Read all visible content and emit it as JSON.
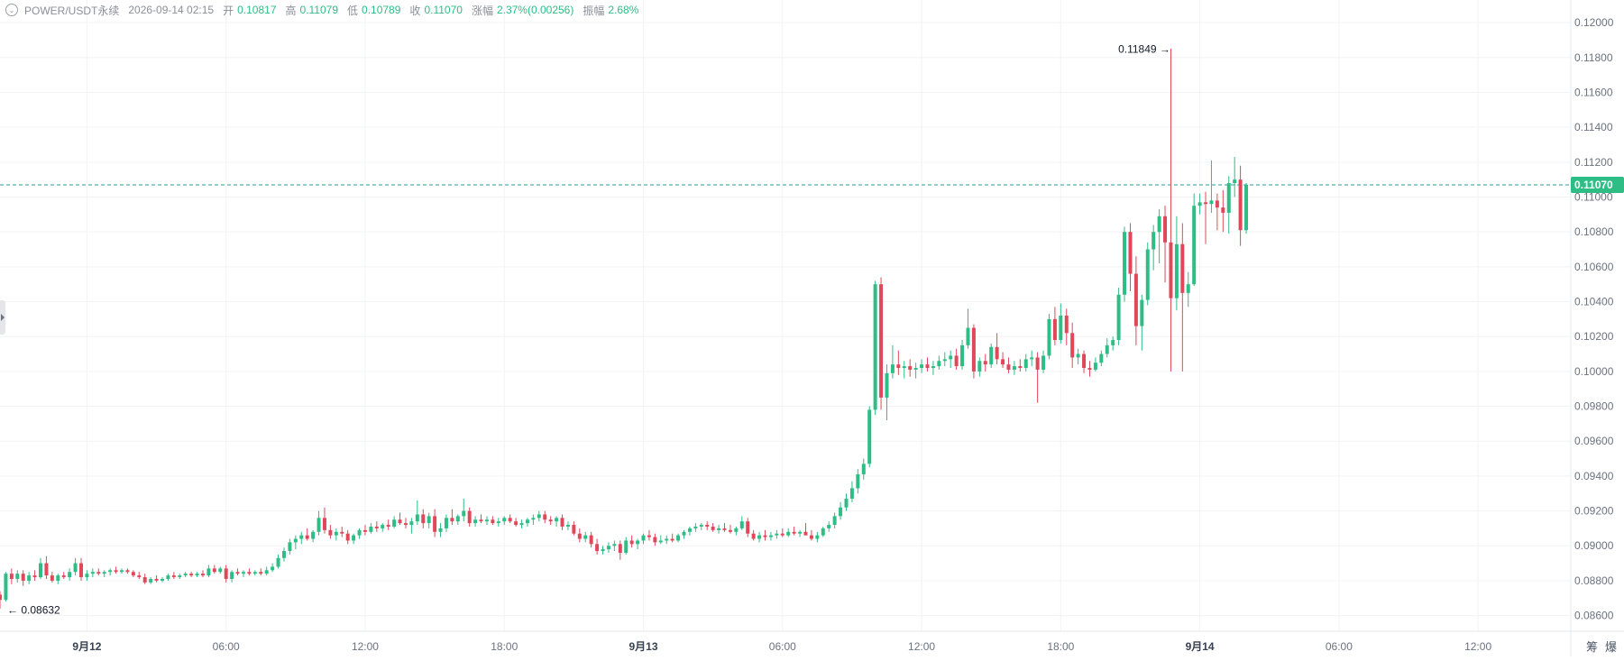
{
  "header": {
    "symbol": "POWER/USDT永续",
    "datetime": "2026-09-14 02:15",
    "open_label": "开",
    "open": "0.10817",
    "high_label": "高",
    "high": "0.11079",
    "low_label": "低",
    "low": "0.10789",
    "close_label": "收",
    "close": "0.11070",
    "change_label": "涨幅",
    "change": "2.37%(0.00256)",
    "amplitude_label": "振幅",
    "amplitude": "2.68%"
  },
  "footer_icons": {
    "chip": "筹",
    "burst": "爆"
  },
  "colors": {
    "up": "#2ebd85",
    "down": "#e0485a",
    "price_line": "#2a9d96",
    "grid": "#f2f3f5",
    "axis_text": "#6b7280"
  },
  "chart_data": {
    "type": "candlestick",
    "y_ticks": [
      "0.12000",
      "0.11800",
      "0.11600",
      "0.11400",
      "0.11200",
      "0.11000",
      "0.10800",
      "0.10600",
      "0.10400",
      "0.10200",
      "0.10000",
      "0.09800",
      "0.09600",
      "0.09400",
      "0.09200",
      "0.09000",
      "0.08800",
      "0.08600"
    ],
    "ylim": [
      0.0851,
      0.1213
    ],
    "x_ticks": [
      {
        "label": "9月12",
        "hour": 0,
        "bold": true
      },
      {
        "label": "06:00",
        "hour": 6
      },
      {
        "label": "12:00",
        "hour": 12
      },
      {
        "label": "18:00",
        "hour": 18
      },
      {
        "label": "9月13",
        "hour": 24,
        "bold": true
      },
      {
        "label": "06:00",
        "hour": 30
      },
      {
        "label": "12:00",
        "hour": 36
      },
      {
        "label": "18:00",
        "hour": 42
      },
      {
        "label": "9月14",
        "hour": 48,
        "bold": true
      },
      {
        "label": "06:00",
        "hour": 54
      },
      {
        "label": "12:00",
        "hour": 60
      }
    ],
    "x_range_hours": [
      -3.75,
      64.0
    ],
    "last_price": "0.11070",
    "last_price_value": 0.1107,
    "max_annotation": {
      "label": "0.11849",
      "value": 0.11849,
      "hour": 47.0
    },
    "min_annotation": {
      "label": "0.08632",
      "value": 0.08632,
      "hour": -3.75
    },
    "interval_hours": 0.25,
    "first_candle_hour": -3.75,
    "candles": [
      [
        0.0872,
        0.0874,
        0.0864,
        0.0869
      ],
      [
        0.0869,
        0.0885,
        0.0868,
        0.0884
      ],
      [
        0.0884,
        0.0887,
        0.0878,
        0.0881
      ],
      [
        0.0881,
        0.0886,
        0.0879,
        0.0884
      ],
      [
        0.0884,
        0.0886,
        0.0877,
        0.088
      ],
      [
        0.088,
        0.0885,
        0.0878,
        0.0883
      ],
      [
        0.0883,
        0.0886,
        0.088,
        0.0882
      ],
      [
        0.0882,
        0.0893,
        0.0881,
        0.089
      ],
      [
        0.089,
        0.0894,
        0.0881,
        0.0883
      ],
      [
        0.0883,
        0.0885,
        0.0879,
        0.088
      ],
      [
        0.088,
        0.0884,
        0.0878,
        0.0883
      ],
      [
        0.0883,
        0.0885,
        0.0881,
        0.0882
      ],
      [
        0.0882,
        0.0887,
        0.088,
        0.0885
      ],
      [
        0.0885,
        0.0893,
        0.0883,
        0.089
      ],
      [
        0.089,
        0.0893,
        0.088,
        0.0882
      ],
      [
        0.0882,
        0.0886,
        0.088,
        0.0884
      ],
      [
        0.0884,
        0.0887,
        0.0882,
        0.0885
      ],
      [
        0.0885,
        0.0887,
        0.0883,
        0.0884
      ],
      [
        0.0884,
        0.0886,
        0.0882,
        0.0885
      ],
      [
        0.0885,
        0.0887,
        0.0883,
        0.0886
      ],
      [
        0.0886,
        0.0888,
        0.0884,
        0.0885
      ],
      [
        0.0885,
        0.0887,
        0.0884,
        0.0886
      ],
      [
        0.0886,
        0.0887,
        0.0884,
        0.0885
      ],
      [
        0.0885,
        0.0886,
        0.0882,
        0.0883
      ],
      [
        0.0883,
        0.0885,
        0.0881,
        0.0882
      ],
      [
        0.0882,
        0.0884,
        0.0878,
        0.0879
      ],
      [
        0.0879,
        0.0882,
        0.0878,
        0.0881
      ],
      [
        0.0881,
        0.0883,
        0.0879,
        0.088
      ],
      [
        0.088,
        0.0882,
        0.0879,
        0.0881
      ],
      [
        0.0881,
        0.0884,
        0.088,
        0.0883
      ],
      [
        0.0883,
        0.0885,
        0.0881,
        0.0882
      ],
      [
        0.0882,
        0.0884,
        0.0881,
        0.0883
      ],
      [
        0.0883,
        0.0885,
        0.0882,
        0.0884
      ],
      [
        0.0884,
        0.0885,
        0.0882,
        0.0883
      ],
      [
        0.0883,
        0.0885,
        0.0882,
        0.0884
      ],
      [
        0.0884,
        0.0886,
        0.0882,
        0.0883
      ],
      [
        0.0883,
        0.0889,
        0.0882,
        0.0887
      ],
      [
        0.0887,
        0.0889,
        0.0884,
        0.0885
      ],
      [
        0.0885,
        0.0888,
        0.0884,
        0.0887
      ],
      [
        0.0887,
        0.0889,
        0.0879,
        0.0881
      ],
      [
        0.0881,
        0.0886,
        0.0879,
        0.0885
      ],
      [
        0.0885,
        0.0887,
        0.0883,
        0.0884
      ],
      [
        0.0884,
        0.0886,
        0.0882,
        0.0885
      ],
      [
        0.0885,
        0.0887,
        0.0883,
        0.0884
      ],
      [
        0.0884,
        0.0886,
        0.0883,
        0.0885
      ],
      [
        0.0885,
        0.0887,
        0.0883,
        0.0884
      ],
      [
        0.0884,
        0.0888,
        0.0883,
        0.0886
      ],
      [
        0.0886,
        0.089,
        0.0885,
        0.0888
      ],
      [
        0.0888,
        0.0895,
        0.0887,
        0.0893
      ],
      [
        0.0893,
        0.0899,
        0.0891,
        0.0897
      ],
      [
        0.0897,
        0.0904,
        0.0895,
        0.0902
      ],
      [
        0.0902,
        0.0906,
        0.0898,
        0.0904
      ],
      [
        0.0904,
        0.0908,
        0.0901,
        0.0906
      ],
      [
        0.0906,
        0.091,
        0.0903,
        0.0904
      ],
      [
        0.0904,
        0.0909,
        0.0902,
        0.0908
      ],
      [
        0.0908,
        0.092,
        0.0906,
        0.0916
      ],
      [
        0.0916,
        0.0922,
        0.0907,
        0.0909
      ],
      [
        0.0909,
        0.0912,
        0.0904,
        0.0906
      ],
      [
        0.0906,
        0.091,
        0.0903,
        0.0908
      ],
      [
        0.0908,
        0.0911,
        0.0905,
        0.0907
      ],
      [
        0.0907,
        0.0909,
        0.0901,
        0.0903
      ],
      [
        0.0903,
        0.0907,
        0.0901,
        0.0906
      ],
      [
        0.0906,
        0.091,
        0.0904,
        0.0909
      ],
      [
        0.0909,
        0.0912,
        0.0906,
        0.0908
      ],
      [
        0.0908,
        0.0913,
        0.0907,
        0.0911
      ],
      [
        0.0911,
        0.0914,
        0.0908,
        0.091
      ],
      [
        0.091,
        0.0913,
        0.0908,
        0.0912
      ],
      [
        0.0912,
        0.0915,
        0.0909,
        0.0911
      ],
      [
        0.0911,
        0.0917,
        0.091,
        0.0915
      ],
      [
        0.0915,
        0.0919,
        0.0912,
        0.0913
      ],
      [
        0.0913,
        0.0916,
        0.091,
        0.0912
      ],
      [
        0.0912,
        0.0916,
        0.0907,
        0.0914
      ],
      [
        0.0914,
        0.0926,
        0.0912,
        0.0918
      ],
      [
        0.0918,
        0.0921,
        0.091,
        0.0913
      ],
      [
        0.0913,
        0.0919,
        0.091,
        0.0917
      ],
      [
        0.0917,
        0.0921,
        0.0905,
        0.0908
      ],
      [
        0.0908,
        0.0913,
        0.0905,
        0.091
      ],
      [
        0.091,
        0.0918,
        0.0908,
        0.0916
      ],
      [
        0.0916,
        0.0921,
        0.0912,
        0.0914
      ],
      [
        0.0914,
        0.0918,
        0.0912,
        0.0917
      ],
      [
        0.0917,
        0.0927,
        0.0914,
        0.092
      ],
      [
        0.092,
        0.0922,
        0.0911,
        0.0913
      ],
      [
        0.0913,
        0.0917,
        0.0911,
        0.0915
      ],
      [
        0.0915,
        0.0918,
        0.0913,
        0.0914
      ],
      [
        0.0914,
        0.0917,
        0.0912,
        0.0915
      ],
      [
        0.0915,
        0.0917,
        0.0912,
        0.0913
      ],
      [
        0.0913,
        0.0916,
        0.0911,
        0.0914
      ],
      [
        0.0914,
        0.0917,
        0.0912,
        0.0916
      ],
      [
        0.0916,
        0.0918,
        0.0913,
        0.0914
      ],
      [
        0.0914,
        0.0916,
        0.0911,
        0.0912
      ],
      [
        0.0912,
        0.0915,
        0.091,
        0.0913
      ],
      [
        0.0913,
        0.0916,
        0.0911,
        0.0915
      ],
      [
        0.0915,
        0.0918,
        0.0912,
        0.0916
      ],
      [
        0.0916,
        0.092,
        0.0914,
        0.0918
      ],
      [
        0.0918,
        0.092,
        0.0913,
        0.0915
      ],
      [
        0.0915,
        0.0917,
        0.0912,
        0.0914
      ],
      [
        0.0914,
        0.0917,
        0.0911,
        0.0916
      ],
      [
        0.0916,
        0.0918,
        0.0909,
        0.0911
      ],
      [
        0.0911,
        0.0914,
        0.0909,
        0.0912
      ],
      [
        0.0912,
        0.0914,
        0.0906,
        0.0907
      ],
      [
        0.0907,
        0.091,
        0.0902,
        0.0904
      ],
      [
        0.0904,
        0.0908,
        0.0902,
        0.0906
      ],
      [
        0.0906,
        0.0908,
        0.0899,
        0.0901
      ],
      [
        0.0901,
        0.0904,
        0.0895,
        0.0897
      ],
      [
        0.0897,
        0.09,
        0.0895,
        0.0898
      ],
      [
        0.0898,
        0.0902,
        0.0896,
        0.09
      ],
      [
        0.09,
        0.0903,
        0.0897,
        0.0901
      ],
      [
        0.0901,
        0.0903,
        0.0892,
        0.0896
      ],
      [
        0.0896,
        0.0905,
        0.0895,
        0.0903
      ],
      [
        0.0903,
        0.0906,
        0.0899,
        0.0901
      ],
      [
        0.0901,
        0.0904,
        0.0898,
        0.0903
      ],
      [
        0.0903,
        0.0907,
        0.0901,
        0.0906
      ],
      [
        0.0906,
        0.0909,
        0.0903,
        0.0905
      ],
      [
        0.0905,
        0.0907,
        0.09,
        0.0902
      ],
      [
        0.0902,
        0.0906,
        0.0901,
        0.0903
      ],
      [
        0.0903,
        0.0906,
        0.0901,
        0.0904
      ],
      [
        0.0904,
        0.0907,
        0.0902,
        0.0903
      ],
      [
        0.0903,
        0.0907,
        0.0902,
        0.0906
      ],
      [
        0.0906,
        0.0909,
        0.0904,
        0.0908
      ],
      [
        0.0908,
        0.0911,
        0.0906,
        0.091
      ],
      [
        0.091,
        0.0913,
        0.0908,
        0.0911
      ],
      [
        0.0911,
        0.0913,
        0.0909,
        0.0912
      ],
      [
        0.0912,
        0.0914,
        0.0909,
        0.0911
      ],
      [
        0.0911,
        0.0913,
        0.0908,
        0.0909
      ],
      [
        0.0909,
        0.0912,
        0.0907,
        0.091
      ],
      [
        0.091,
        0.0913,
        0.0908,
        0.0909
      ],
      [
        0.0909,
        0.0912,
        0.0907,
        0.0908
      ],
      [
        0.0908,
        0.0911,
        0.0906,
        0.091
      ],
      [
        0.091,
        0.0917,
        0.0909,
        0.0914
      ],
      [
        0.0914,
        0.0916,
        0.0905,
        0.0907
      ],
      [
        0.0907,
        0.0909,
        0.0903,
        0.0904
      ],
      [
        0.0904,
        0.0908,
        0.0902,
        0.0906
      ],
      [
        0.0906,
        0.0909,
        0.0903,
        0.0905
      ],
      [
        0.0905,
        0.0908,
        0.0903,
        0.0906
      ],
      [
        0.0906,
        0.0909,
        0.0904,
        0.0907
      ],
      [
        0.0907,
        0.091,
        0.0905,
        0.0906
      ],
      [
        0.0906,
        0.091,
        0.0905,
        0.0908
      ],
      [
        0.0908,
        0.0911,
        0.0906,
        0.0907
      ],
      [
        0.0907,
        0.0909,
        0.0905,
        0.0908
      ],
      [
        0.0908,
        0.0913,
        0.0906,
        0.0906
      ],
      [
        0.0906,
        0.0909,
        0.0903,
        0.0904
      ],
      [
        0.0904,
        0.0908,
        0.0902,
        0.0906
      ],
      [
        0.0906,
        0.0911,
        0.0905,
        0.091
      ],
      [
        0.091,
        0.0914,
        0.0908,
        0.0912
      ],
      [
        0.0912,
        0.0919,
        0.091,
        0.0917
      ],
      [
        0.0917,
        0.0925,
        0.0915,
        0.0922
      ],
      [
        0.0922,
        0.093,
        0.092,
        0.0927
      ],
      [
        0.0927,
        0.0937,
        0.0925,
        0.0933
      ],
      [
        0.0933,
        0.0944,
        0.093,
        0.0941
      ],
      [
        0.0941,
        0.095,
        0.0938,
        0.0947
      ],
      [
        0.0947,
        0.098,
        0.0945,
        0.0978
      ],
      [
        0.0978,
        0.1052,
        0.0975,
        0.105
      ],
      [
        0.105,
        0.1054,
        0.0978,
        0.0985
      ],
      [
        0.0985,
        0.1004,
        0.0972,
        0.0999
      ],
      [
        0.0999,
        0.1015,
        0.0996,
        0.1004
      ],
      [
        0.1004,
        0.1012,
        0.0998,
        0.1002
      ],
      [
        0.1002,
        0.1006,
        0.0996,
        0.1003
      ],
      [
        0.1003,
        0.1007,
        0.0997,
        0.1001
      ],
      [
        0.1001,
        0.1005,
        0.0996,
        0.1002
      ],
      [
        0.1002,
        0.1007,
        0.0999,
        0.1004
      ],
      [
        0.1004,
        0.1008,
        0.1,
        0.1002
      ],
      [
        0.1002,
        0.1006,
        0.0998,
        0.1003
      ],
      [
        0.1003,
        0.1009,
        0.1001,
        0.1006
      ],
      [
        0.1006,
        0.1011,
        0.1003,
        0.1007
      ],
      [
        0.1007,
        0.1012,
        0.1002,
        0.1009
      ],
      [
        0.1009,
        0.1013,
        0.1001,
        0.1003
      ],
      [
        0.1003,
        0.1018,
        0.1001,
        0.1015
      ],
      [
        0.1015,
        0.1036,
        0.1013,
        0.1025
      ],
      [
        0.1025,
        0.1027,
        0.0996,
        0.1
      ],
      [
        0.1,
        0.1008,
        0.0997,
        0.1006
      ],
      [
        0.1006,
        0.101,
        0.1,
        0.1004
      ],
      [
        0.1004,
        0.1016,
        0.1002,
        0.1014
      ],
      [
        0.1014,
        0.1022,
        0.1004,
        0.1007
      ],
      [
        0.1007,
        0.1011,
        0.1002,
        0.1004
      ],
      [
        0.1004,
        0.1008,
        0.0999,
        0.1001
      ],
      [
        0.1001,
        0.1006,
        0.0998,
        0.1003
      ],
      [
        0.1003,
        0.1007,
        0.1,
        0.1002
      ],
      [
        0.1002,
        0.101,
        0.1,
        0.1007
      ],
      [
        0.1007,
        0.1012,
        0.1003,
        0.1008
      ],
      [
        0.1008,
        0.1011,
        0.0982,
        0.1001
      ],
      [
        0.1001,
        0.1012,
        0.0999,
        0.1009
      ],
      [
        0.1009,
        0.1033,
        0.1007,
        0.103
      ],
      [
        0.103,
        0.1037,
        0.1015,
        0.1018
      ],
      [
        0.1018,
        0.1039,
        0.1016,
        0.1032
      ],
      [
        0.1032,
        0.1036,
        0.1015,
        0.1022
      ],
      [
        0.1022,
        0.1028,
        0.1002,
        0.1008
      ],
      [
        0.1008,
        0.1013,
        0.1004,
        0.101
      ],
      [
        0.101,
        0.1012,
        0.0999,
        0.1002
      ],
      [
        0.1002,
        0.1006,
        0.0997,
        0.1001
      ],
      [
        0.1001,
        0.1008,
        0.1,
        0.1005
      ],
      [
        0.1005,
        0.1012,
        0.1003,
        0.101
      ],
      [
        0.101,
        0.1019,
        0.1008,
        0.1015
      ],
      [
        0.1015,
        0.102,
        0.1012,
        0.1018
      ],
      [
        0.1018,
        0.1048,
        0.1015,
        0.1044
      ],
      [
        0.1044,
        0.1083,
        0.104,
        0.108
      ],
      [
        0.108,
        0.1085,
        0.1046,
        0.1056
      ],
      [
        0.1056,
        0.1066,
        0.1015,
        0.1026
      ],
      [
        0.1026,
        0.1044,
        0.1012,
        0.1041
      ],
      [
        0.1041,
        0.1074,
        0.1038,
        0.107
      ],
      [
        0.107,
        0.1084,
        0.1058,
        0.108
      ],
      [
        0.108,
        0.1093,
        0.1062,
        0.1089
      ],
      [
        0.1089,
        0.1095,
        0.1051,
        0.1074
      ],
      [
        0.1074,
        0.1185,
        0.1,
        0.1042
      ],
      [
        0.1042,
        0.1089,
        0.1035,
        0.1073
      ],
      [
        0.1073,
        0.1085,
        0.1,
        0.1045
      ],
      [
        0.1045,
        0.1057,
        0.1037,
        0.105
      ],
      [
        0.105,
        0.1102,
        0.1049,
        0.1095
      ],
      [
        0.1095,
        0.1102,
        0.109,
        0.1097
      ],
      [
        0.1097,
        0.1103,
        0.1073,
        0.1096
      ],
      [
        0.1096,
        0.1121,
        0.1091,
        0.1098
      ],
      [
        0.1098,
        0.1102,
        0.1081,
        0.1094
      ],
      [
        0.1094,
        0.1104,
        0.108,
        0.1091
      ],
      [
        0.1091,
        0.1112,
        0.1079,
        0.1108
      ],
      [
        0.1108,
        0.1123,
        0.11,
        0.111
      ],
      [
        0.111,
        0.1118,
        0.1072,
        0.1081
      ],
      [
        0.1081,
        0.1108,
        0.1079,
        0.1107
      ]
    ]
  }
}
